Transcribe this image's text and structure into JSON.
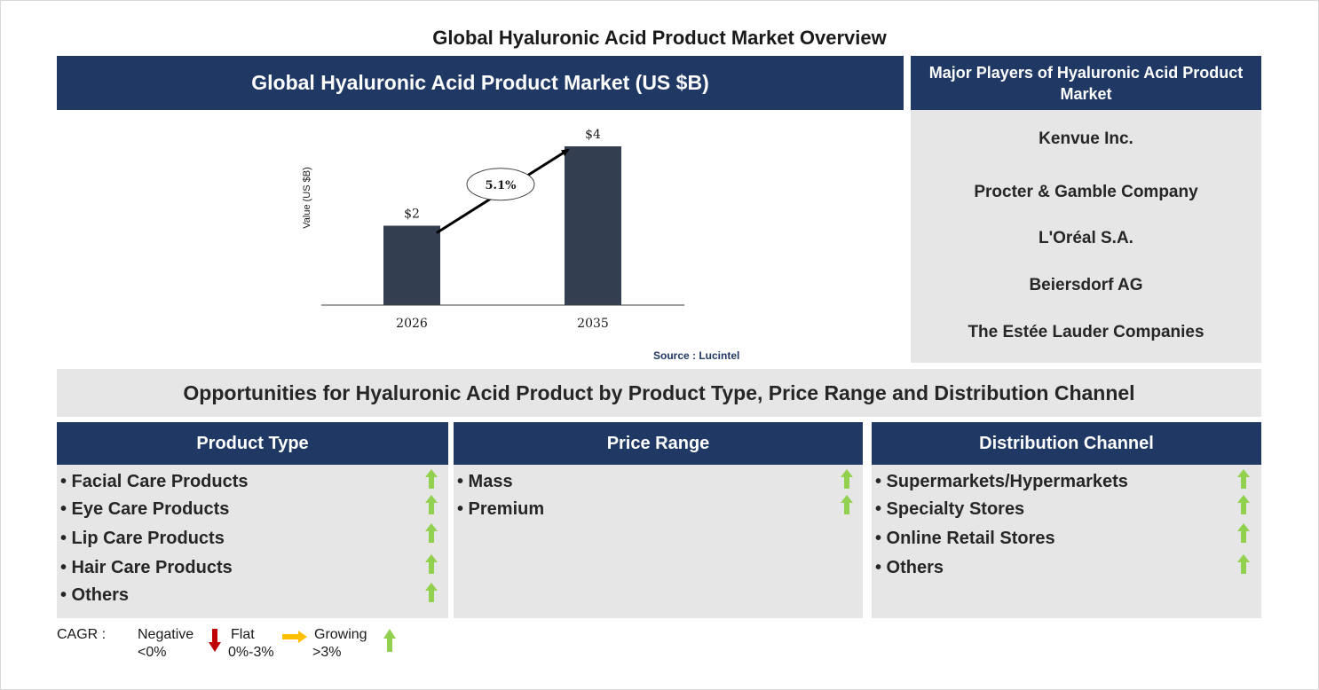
{
  "page_title": "Global Hyaluronic Acid Product Market Overview",
  "chart_panel": {
    "header": "Global Hyaluronic Acid Product Market (US $B)",
    "source": "Source : Lucintel"
  },
  "chart_data": {
    "type": "bar",
    "categories": [
      "2026",
      "2035"
    ],
    "values": [
      2,
      4
    ],
    "value_labels": [
      "$2",
      "$4"
    ],
    "ylabel": "Value (US $B)",
    "ylim": [
      0,
      4
    ],
    "cagr_label": "5.1%",
    "bar_color": "#333f50",
    "grid": false,
    "legend": "none"
  },
  "players": {
    "header": "Major Players of Hyaluronic Acid Product Market",
    "items": [
      "Kenvue Inc.",
      "Procter & Gamble Company",
      "L'Oréal S.A.",
      "Beiersdorf AG",
      "The Estée Lauder Companies"
    ]
  },
  "opportunities": {
    "banner": "Opportunities for Hyaluronic Acid Product by Product Type, Price Range and Distribution Channel",
    "segments": [
      {
        "header": "Product Type",
        "items": [
          {
            "label": "• Facial Care Products",
            "trend": "growing"
          },
          {
            "label": "• Eye Care Products",
            "trend": "growing"
          },
          {
            "label": "• Lip Care Products",
            "trend": "growing"
          },
          {
            "label": "• Hair Care Products",
            "trend": "growing"
          },
          {
            "label": "• Others",
            "trend": "growing"
          }
        ]
      },
      {
        "header": "Price Range",
        "items": [
          {
            "label": "• Mass",
            "trend": "growing"
          },
          {
            "label": "• Premium",
            "trend": "growing"
          }
        ]
      },
      {
        "header": "Distribution Channel",
        "items": [
          {
            "label": "• Supermarkets/Hypermarkets",
            "trend": "growing"
          },
          {
            "label": "• Specialty Stores",
            "trend": "growing"
          },
          {
            "label": "• Online Retail Stores",
            "trend": "growing"
          },
          {
            "label": "• Others",
            "trend": "growing"
          }
        ]
      }
    ]
  },
  "legend": {
    "title": "CAGR  :",
    "negative": {
      "label": "Negative",
      "range": "<0%",
      "color": "#c00000",
      "icon": "down-arrow-icon"
    },
    "flat": {
      "label": "Flat",
      "range": "0%-3%",
      "color": "#ffc000",
      "icon": "right-arrow-icon"
    },
    "growing": {
      "label": "Growing",
      "range": ">3%",
      "color": "#92d050",
      "icon": "up-arrow-icon"
    }
  },
  "colors": {
    "navy": "#203864",
    "panel_grey": "#e6e6e6",
    "growing_arrow": "#92d050"
  }
}
